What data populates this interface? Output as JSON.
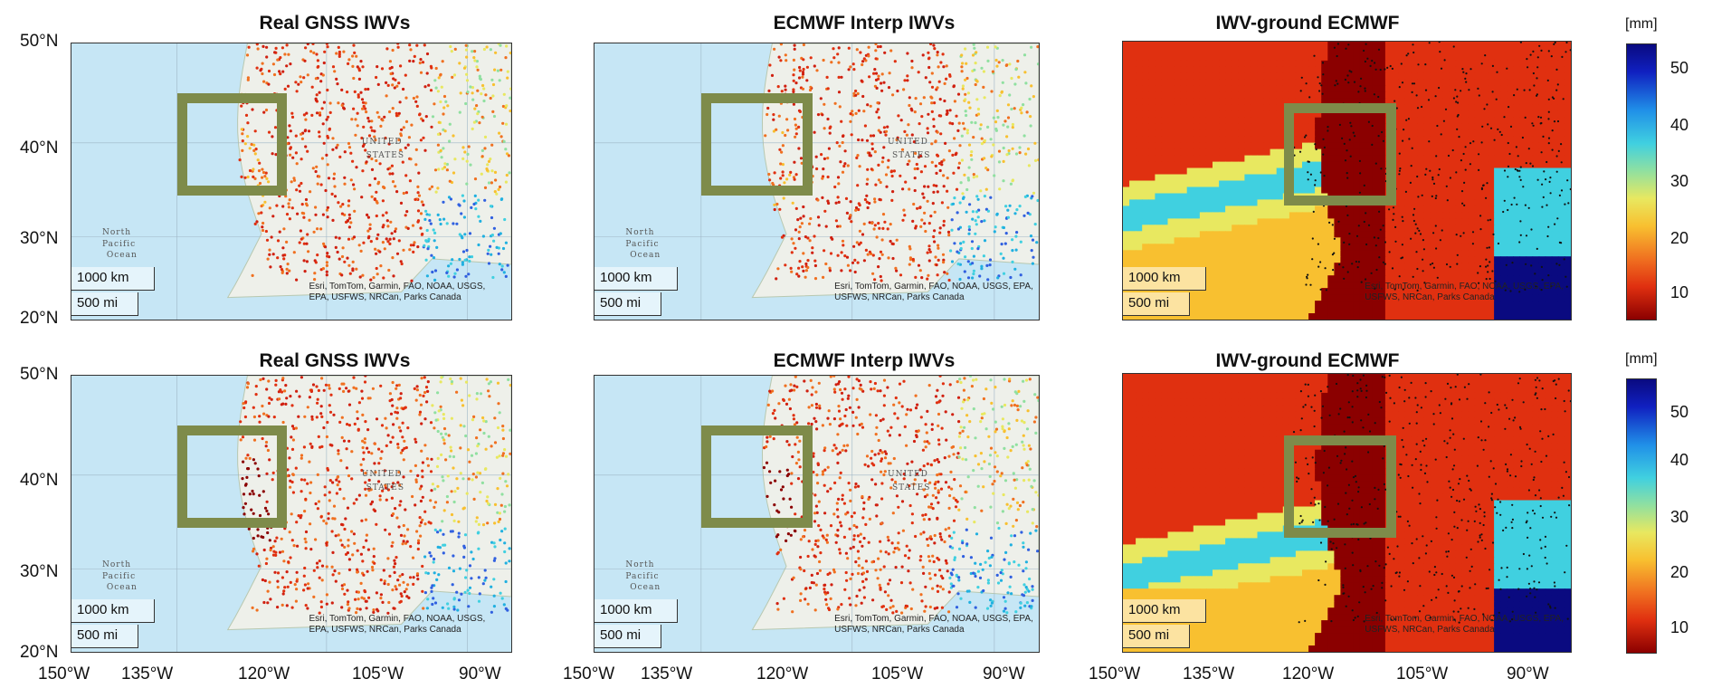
{
  "panels": [
    {
      "title": "Real GNSS IWVs",
      "kind": "stations"
    },
    {
      "title": "ECMWF Interp IWVs",
      "kind": "stations"
    },
    {
      "title": "IWV-ground ECMWF",
      "kind": "field"
    },
    {
      "title": "Real GNSS IWVs",
      "kind": "stations"
    },
    {
      "title": "ECMWF Interp IWVs",
      "kind": "stations"
    },
    {
      "title": "IWV-ground ECMWF",
      "kind": "field"
    }
  ],
  "axes": {
    "lat_labels": [
      "50°N",
      "40°N",
      "30°N",
      "20°N"
    ],
    "lon_labels": [
      "150°W",
      "135°W",
      "120°W",
      "105°W",
      "90°W"
    ]
  },
  "map": {
    "scale_km": "1000 km",
    "scale_mi": "500 mi",
    "attribution": "Esri, TomTom, Garmin, FAO, NOAA, USGS, EPA, USFWS, NRCan, Parks Canada",
    "labels": {
      "ocean1": "North",
      "ocean2": "Pacific",
      "ocean3": "Ocean",
      "country1": "UNITED",
      "country2": "STATES"
    }
  },
  "colorbar": {
    "unit": "[mm]",
    "ticks": [
      "50",
      "40",
      "30",
      "20",
      "10"
    ],
    "colors": [
      "#0a0a80",
      "#2090e8",
      "#40d0e0",
      "#e8e860",
      "#f8c030",
      "#f07020",
      "#e03010",
      "#8b0000"
    ]
  },
  "colors": {
    "zoom_box": "#7e8b4a",
    "ocean": "#c6e6f5",
    "land": "#eef0ea"
  }
}
